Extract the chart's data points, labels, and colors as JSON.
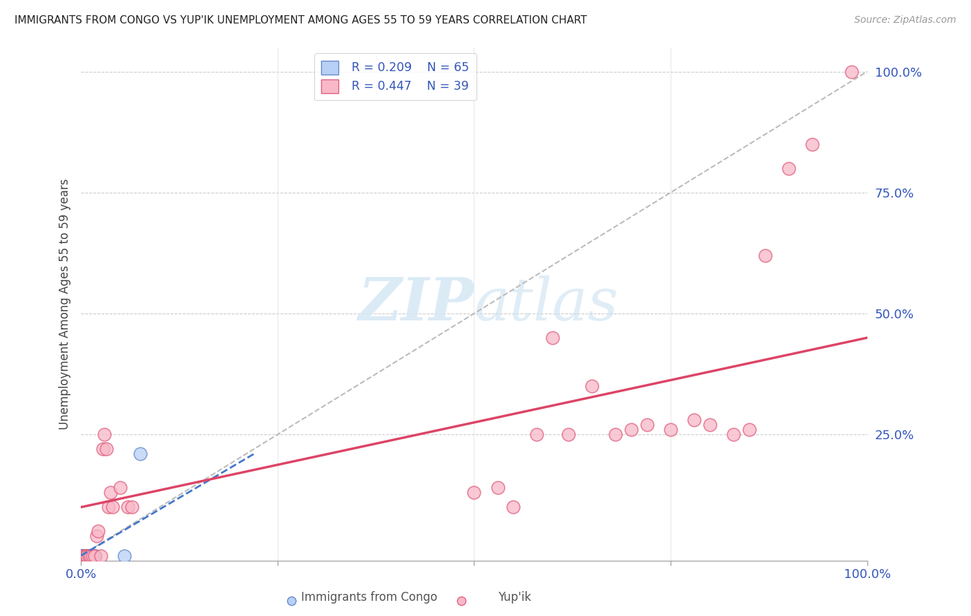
{
  "title": "IMMIGRANTS FROM CONGO VS YUP'IK UNEMPLOYMENT AMONG AGES 55 TO 59 YEARS CORRELATION CHART",
  "source": "Source: ZipAtlas.com",
  "ylabel": "Unemployment Among Ages 55 to 59 years",
  "xlim": [
    0,
    1.0
  ],
  "ylim": [
    0,
    1.05
  ],
  "congo_R": 0.209,
  "congo_N": 65,
  "yupik_R": 0.447,
  "yupik_N": 39,
  "congo_fill_color": "#b8d0f5",
  "yupik_fill_color": "#f8b8c8",
  "congo_edge_color": "#6688cc",
  "yupik_edge_color": "#e06080",
  "congo_line_color": "#4477cc",
  "yupik_line_color": "#dd4466",
  "diag_color": "#bbbbbb",
  "watermark_color": "#d8eaf8",
  "tick_color": "#3355bb",
  "grid_color": "#cccccc",
  "congo_x": [
    0.001,
    0.001,
    0.001,
    0.001,
    0.002,
    0.002,
    0.002,
    0.002,
    0.002,
    0.002,
    0.003,
    0.003,
    0.003,
    0.003,
    0.003,
    0.003,
    0.003,
    0.003,
    0.003,
    0.004,
    0.004,
    0.004,
    0.004,
    0.004,
    0.004,
    0.005,
    0.005,
    0.005,
    0.005,
    0.005,
    0.005,
    0.005,
    0.005,
    0.006,
    0.006,
    0.006,
    0.006,
    0.006,
    0.006,
    0.007,
    0.007,
    0.007,
    0.007,
    0.007,
    0.008,
    0.008,
    0.008,
    0.008,
    0.009,
    0.009,
    0.009,
    0.01,
    0.01,
    0.011,
    0.012,
    0.012,
    0.013,
    0.013,
    0.014,
    0.015,
    0.016,
    0.017,
    0.018,
    0.055,
    0.075
  ],
  "congo_y": [
    0.0,
    0.0,
    0.0,
    0.0,
    0.0,
    0.0,
    0.0,
    0.0,
    0.0,
    0.0,
    0.0,
    0.0,
    0.0,
    0.0,
    0.0,
    0.0,
    0.0,
    0.0,
    0.0,
    0.0,
    0.0,
    0.0,
    0.0,
    0.0,
    0.0,
    0.0,
    0.0,
    0.0,
    0.0,
    0.0,
    0.0,
    0.0,
    0.0,
    0.0,
    0.0,
    0.0,
    0.0,
    0.0,
    0.0,
    0.0,
    0.0,
    0.0,
    0.0,
    0.0,
    0.0,
    0.0,
    0.0,
    0.0,
    0.0,
    0.0,
    0.0,
    0.0,
    0.0,
    0.0,
    0.0,
    0.0,
    0.0,
    0.0,
    0.0,
    0.0,
    0.0,
    0.0,
    0.0,
    0.0,
    0.21
  ],
  "yupik_x": [
    0.003,
    0.005,
    0.007,
    0.008,
    0.01,
    0.012,
    0.015,
    0.017,
    0.02,
    0.022,
    0.025,
    0.028,
    0.03,
    0.032,
    0.035,
    0.038,
    0.04,
    0.05,
    0.06,
    0.065,
    0.5,
    0.53,
    0.55,
    0.58,
    0.6,
    0.62,
    0.65,
    0.68,
    0.7,
    0.72,
    0.75,
    0.78,
    0.8,
    0.83,
    0.85,
    0.87,
    0.9,
    0.93,
    0.98
  ],
  "yupik_y": [
    0.0,
    0.0,
    0.0,
    0.0,
    0.0,
    0.0,
    0.0,
    0.0,
    0.04,
    0.05,
    0.0,
    0.22,
    0.25,
    0.22,
    0.1,
    0.13,
    0.1,
    0.14,
    0.1,
    0.1,
    0.13,
    0.14,
    0.1,
    0.25,
    0.45,
    0.25,
    0.35,
    0.25,
    0.26,
    0.27,
    0.26,
    0.28,
    0.27,
    0.25,
    0.26,
    0.62,
    0.8,
    0.85,
    1.0
  ],
  "congo_line_x": [
    0.0,
    0.22
  ],
  "congo_line_y": [
    0.0,
    0.21
  ],
  "yupik_line_x": [
    0.0,
    1.0
  ],
  "yupik_line_y": [
    0.1,
    0.45
  ]
}
